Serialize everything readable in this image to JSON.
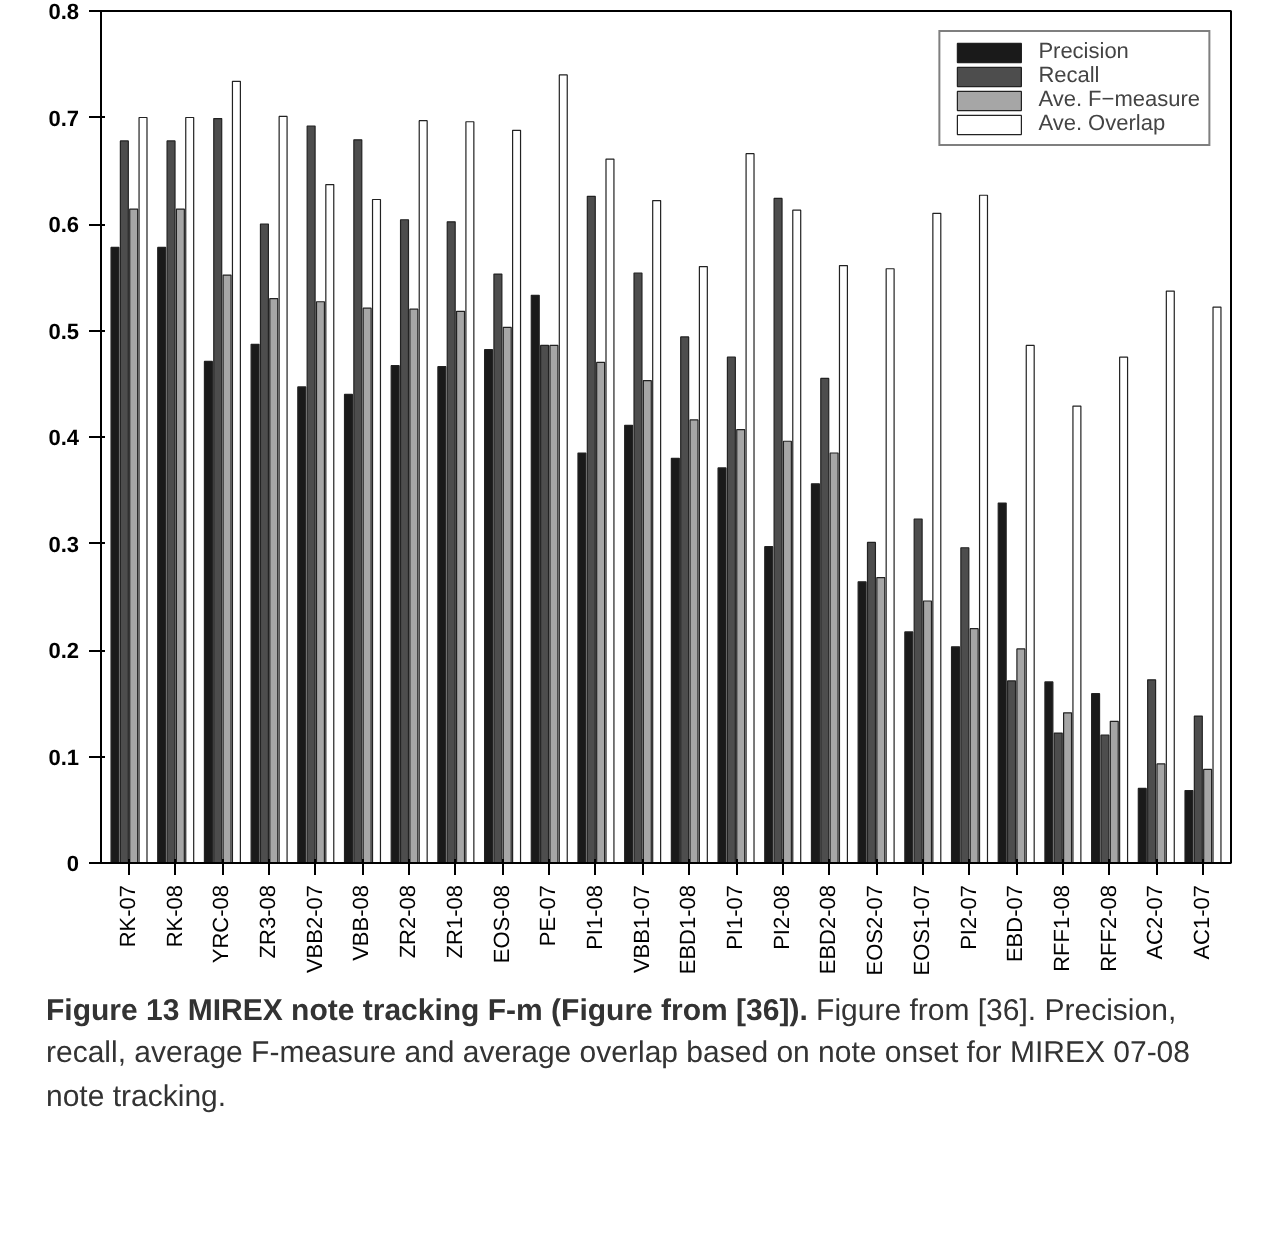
{
  "chart_data": {
    "type": "bar",
    "title": "Figure 13 MIREX note tracking F-m (Figure from [36]).",
    "annotations": [
      "Figure from [36]. Precision, recall, average F-measure and average overlap based on note onset for MIREX 07-08 note tracking."
    ],
    "categories": [
      "RK-07",
      "RK-08",
      "YRC-08",
      "ZR3-08",
      "VBB2-07",
      "VBB-08",
      "ZR2-08",
      "ZR1-08",
      "EOS-08",
      "PE-07",
      "PI1-08",
      "VBB1-07",
      "EBD1-08",
      "PI1-07",
      "PI2-08",
      "EBD2-08",
      "EOS2-07",
      "EOS1-07",
      "PI2-07",
      "EBD-07",
      "RFF1-08",
      "RFF2-08",
      "AC2-07",
      "AC1-07"
    ],
    "series": [
      {
        "name": "Precision",
        "color": "#1a1a1a",
        "values": [
          0.578,
          0.578,
          0.471,
          0.487,
          0.447,
          0.44,
          0.467,
          0.466,
          0.482,
          0.533,
          0.385,
          0.411,
          0.38,
          0.371,
          0.297,
          0.356,
          0.264,
          0.217,
          0.203,
          0.338,
          0.17,
          0.159,
          0.07,
          0.068
        ]
      },
      {
        "name": "Recall",
        "color": "#4d4d4d",
        "values": [
          0.678,
          0.678,
          0.699,
          0.6,
          0.692,
          0.679,
          0.604,
          0.602,
          0.553,
          0.486,
          0.626,
          0.554,
          0.494,
          0.475,
          0.624,
          0.455,
          0.301,
          0.323,
          0.296,
          0.171,
          0.122,
          0.12,
          0.172,
          0.138
        ]
      },
      {
        "name": "Ave. F−measure",
        "color": "#a6a6a6",
        "values": [
          0.614,
          0.614,
          0.552,
          0.53,
          0.527,
          0.521,
          0.52,
          0.518,
          0.503,
          0.486,
          0.47,
          0.453,
          0.416,
          0.407,
          0.396,
          0.385,
          0.268,
          0.246,
          0.22,
          0.201,
          0.141,
          0.133,
          0.093,
          0.088
        ]
      },
      {
        "name": "Ave. Overlap",
        "color": "#ffffff",
        "values": [
          0.7,
          0.7,
          0.734,
          0.701,
          0.637,
          0.623,
          0.697,
          0.696,
          0.688,
          0.74,
          0.661,
          0.622,
          0.56,
          0.666,
          0.613,
          0.561,
          0.558,
          0.61,
          0.627,
          0.486,
          0.429,
          0.475,
          0.537,
          0.522
        ]
      }
    ],
    "ylim": [
      0,
      0.8
    ],
    "yticks": [
      0,
      0.1,
      0.2,
      0.3,
      0.4,
      0.5,
      0.6,
      0.7,
      0.8
    ],
    "legend": "top right",
    "grid": false
  }
}
